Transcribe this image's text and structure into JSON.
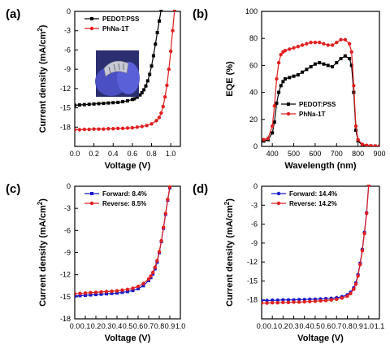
{
  "chart_data": [
    {
      "panel_label": "(a)",
      "type": "line",
      "xlabel": "Voltage (V)",
      "ylabel": "Current density (mA/cm²)",
      "ylabel_main": "Current density (mA/cm",
      "ylabel_sup": "2",
      "ylabel_tail": ")",
      "xlim": [
        0,
        1.1
      ],
      "ylim": [
        -21,
        0
      ],
      "xticks": [
        "0.0",
        "0.2",
        "0.4",
        "0.6",
        "0.8",
        "1.0"
      ],
      "yticks": [
        "0",
        "-3",
        "-6",
        "-9",
        "-12",
        "-15",
        "-18"
      ],
      "has_photo_inset": true,
      "legend_position": "top-left",
      "series": [
        {
          "name": "PEDOT:PSS",
          "color": "#000000",
          "marker": "square",
          "x": [
            0.0,
            0.05,
            0.1,
            0.15,
            0.2,
            0.25,
            0.3,
            0.35,
            0.4,
            0.45,
            0.5,
            0.55,
            0.6,
            0.62,
            0.65,
            0.68,
            0.7,
            0.72,
            0.74,
            0.76,
            0.78,
            0.8,
            0.82,
            0.84,
            0.86,
            0.88,
            0.9
          ],
          "y": [
            -14.6,
            -14.55,
            -14.5,
            -14.45,
            -14.4,
            -14.35,
            -14.3,
            -14.25,
            -14.2,
            -14.15,
            -14.05,
            -13.9,
            -13.7,
            -13.6,
            -13.35,
            -13.0,
            -12.65,
            -12.2,
            -11.6,
            -10.8,
            -9.8,
            -8.5,
            -6.9,
            -5.1,
            -3.3,
            -1.5,
            0.3
          ]
        },
        {
          "name": "PhNa-1T",
          "color": "#e02020",
          "marker": "circle",
          "x": [
            0.0,
            0.05,
            0.1,
            0.15,
            0.2,
            0.25,
            0.3,
            0.35,
            0.4,
            0.45,
            0.5,
            0.55,
            0.6,
            0.65,
            0.7,
            0.75,
            0.8,
            0.85,
            0.88,
            0.9,
            0.92,
            0.94,
            0.96,
            0.98,
            1.0,
            1.02,
            1.04
          ],
          "y": [
            -18.4,
            -18.4,
            -18.35,
            -18.35,
            -18.3,
            -18.3,
            -18.3,
            -18.25,
            -18.25,
            -18.2,
            -18.2,
            -18.15,
            -18.1,
            -18.0,
            -17.9,
            -17.75,
            -17.5,
            -17.0,
            -16.5,
            -15.8,
            -14.8,
            -13.3,
            -11.5,
            -9.0,
            -6.2,
            -3.0,
            0.3
          ]
        }
      ]
    },
    {
      "panel_label": "(b)",
      "type": "line",
      "xlabel": "Wavelength (nm)",
      "ylabel": "EQE (%)",
      "xlim": [
        350,
        900
      ],
      "ylim": [
        0,
        100
      ],
      "xticks": [
        "400",
        "500",
        "600",
        "700",
        "800",
        "900"
      ],
      "yticks": [
        "0",
        "20",
        "40",
        "60",
        "80",
        "100"
      ],
      "legend_position": "bottom-center",
      "series": [
        {
          "name": "PEDOT:PSS",
          "color": "#000000",
          "marker": "square",
          "x": [
            360,
            380,
            400,
            410,
            420,
            430,
            440,
            450,
            460,
            480,
            500,
            520,
            540,
            560,
            580,
            600,
            620,
            640,
            660,
            680,
            700,
            720,
            740,
            760,
            770,
            780,
            790,
            800,
            820,
            840,
            860,
            880,
            900
          ],
          "y": [
            4,
            5,
            10,
            18,
            32,
            40,
            45,
            48,
            50,
            51,
            52,
            53,
            55,
            57,
            59,
            61,
            62,
            61,
            60,
            59,
            62,
            65,
            67,
            65,
            60,
            40,
            12,
            4,
            1,
            0.5,
            0.3,
            0.2,
            0.1
          ]
        },
        {
          "name": "PhNa-1T",
          "color": "#e02020",
          "marker": "circle",
          "x": [
            360,
            380,
            400,
            410,
            420,
            430,
            440,
            450,
            460,
            480,
            500,
            520,
            540,
            560,
            580,
            600,
            620,
            640,
            660,
            680,
            700,
            720,
            740,
            760,
            770,
            780,
            790,
            800,
            820,
            840,
            860,
            880,
            900
          ],
          "y": [
            5,
            6,
            15,
            30,
            50,
            62,
            68,
            70,
            71,
            72,
            73,
            74,
            75,
            76,
            77,
            77,
            77,
            76,
            75,
            75,
            77,
            79,
            79,
            76,
            70,
            45,
            15,
            5,
            1.5,
            0.8,
            0.5,
            0.3,
            0.2
          ]
        }
      ]
    },
    {
      "panel_label": "(c)",
      "type": "line",
      "xlabel": "Voltage (V)",
      "ylabel": "Current density (mA/cm²)",
      "ylabel_main": "Current density (mA/cm",
      "ylabel_sup": "2",
      "ylabel_tail": ")",
      "xlim": [
        0,
        1.0
      ],
      "ylim": [
        -18,
        0
      ],
      "xticks": [
        "0.0",
        "0.1",
        "0.2",
        "0.3",
        "0.4",
        "0.5",
        "0.6",
        "0.7",
        "0.8",
        "0.9",
        "1.0"
      ],
      "yticks": [
        "0",
        "-3",
        "-6",
        "-9",
        "-12",
        "-15",
        "-18"
      ],
      "legend_position": "top-left",
      "series": [
        {
          "name": "Forward: 8.4%",
          "color": "#1a1acc",
          "marker": "square",
          "x": [
            0.0,
            0.05,
            0.1,
            0.15,
            0.2,
            0.25,
            0.3,
            0.35,
            0.4,
            0.45,
            0.5,
            0.55,
            0.6,
            0.65,
            0.7,
            0.72,
            0.74,
            0.76,
            0.78,
            0.8,
            0.82,
            0.84,
            0.86,
            0.88,
            0.9
          ],
          "y": [
            -14.9,
            -14.85,
            -14.8,
            -14.75,
            -14.7,
            -14.65,
            -14.6,
            -14.55,
            -14.5,
            -14.4,
            -14.3,
            -14.15,
            -13.9,
            -13.5,
            -12.8,
            -12.4,
            -11.9,
            -11.2,
            -10.3,
            -9.0,
            -7.5,
            -5.7,
            -3.8,
            -1.9,
            -0.2
          ]
        },
        {
          "name": "Reverse: 8.5%",
          "color": "#e02020",
          "marker": "circle",
          "x": [
            0.0,
            0.05,
            0.1,
            0.15,
            0.2,
            0.25,
            0.3,
            0.35,
            0.4,
            0.45,
            0.5,
            0.55,
            0.6,
            0.65,
            0.7,
            0.72,
            0.74,
            0.76,
            0.78,
            0.8,
            0.82,
            0.84,
            0.86,
            0.88,
            0.9
          ],
          "y": [
            -14.6,
            -14.55,
            -14.5,
            -14.45,
            -14.4,
            -14.35,
            -14.3,
            -14.25,
            -14.2,
            -14.1,
            -14.0,
            -13.85,
            -13.6,
            -13.2,
            -12.6,
            -12.2,
            -11.7,
            -11.0,
            -10.1,
            -8.9,
            -7.4,
            -5.6,
            -3.7,
            -1.8,
            -0.1
          ]
        }
      ]
    },
    {
      "panel_label": "(d)",
      "type": "line",
      "xlabel": "Voltage (V)",
      "ylabel": "Current density (mA/cm²)",
      "ylabel_main": "Current density (mA/cm",
      "ylabel_sup": "2",
      "ylabel_tail": ")",
      "xlim": [
        0,
        1.1
      ],
      "ylim": [
        -21,
        0
      ],
      "xticks": [
        "0.0",
        "0.1",
        "0.2",
        "0.3",
        "0.4",
        "0.5",
        "0.6",
        "0.7",
        "0.8",
        "0.9",
        "1.0",
        "1.1"
      ],
      "yticks": [
        "0",
        "-3",
        "-6",
        "-9",
        "-12",
        "-15",
        "-18"
      ],
      "legend_position": "top-left",
      "series": [
        {
          "name": "Forward: 14.4%",
          "color": "#1a1acc",
          "marker": "circle",
          "x": [
            0.0,
            0.05,
            0.1,
            0.15,
            0.2,
            0.25,
            0.3,
            0.35,
            0.4,
            0.45,
            0.5,
            0.55,
            0.6,
            0.65,
            0.7,
            0.75,
            0.8,
            0.83,
            0.86,
            0.88,
            0.9,
            0.92,
            0.94,
            0.96,
            0.98,
            1.0
          ],
          "y": [
            -18.1,
            -18.1,
            -18.05,
            -18.05,
            -18.0,
            -18.0,
            -18.0,
            -17.95,
            -17.95,
            -17.9,
            -17.9,
            -17.85,
            -17.8,
            -17.75,
            -17.65,
            -17.5,
            -17.2,
            -16.8,
            -16.1,
            -15.3,
            -14.0,
            -12.2,
            -10.0,
            -7.3,
            -4.2,
            0.3
          ]
        },
        {
          "name": "Reverse: 14.2%",
          "color": "#e02020",
          "marker": "circle",
          "x": [
            0.0,
            0.05,
            0.1,
            0.15,
            0.2,
            0.25,
            0.3,
            0.35,
            0.4,
            0.45,
            0.5,
            0.55,
            0.6,
            0.65,
            0.7,
            0.75,
            0.8,
            0.83,
            0.86,
            0.88,
            0.9,
            0.92,
            0.94,
            0.96,
            0.98,
            1.0
          ],
          "y": [
            -18.5,
            -18.5,
            -18.45,
            -18.45,
            -18.4,
            -18.4,
            -18.35,
            -18.35,
            -18.3,
            -18.25,
            -18.2,
            -18.15,
            -18.1,
            -18.0,
            -17.9,
            -17.7,
            -17.4,
            -17.0,
            -16.3,
            -15.5,
            -14.2,
            -12.4,
            -10.2,
            -7.5,
            -4.3,
            0.2
          ]
        }
      ]
    }
  ]
}
